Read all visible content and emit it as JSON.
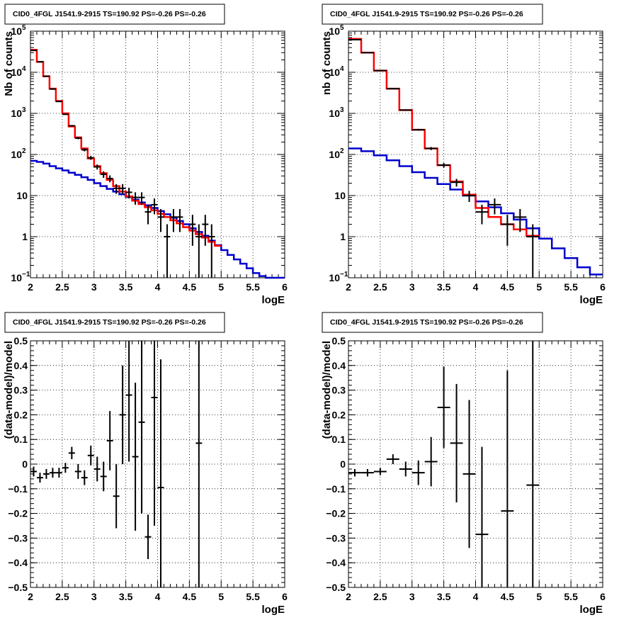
{
  "colors": {
    "data": "#000000",
    "model_total": "#ff0000",
    "model_component": "#0000cc",
    "grid": "#000000"
  },
  "chart_data": [
    {
      "type": "step-histogram",
      "title": "CID0_4FGL J1541.9-2915 TS=190.92 PS=-0.26 PS=-0.26",
      "xlabel": "logE",
      "ylabel": "Nb of counts",
      "xlim": [
        2,
        6
      ],
      "ylim": [
        0.1,
        100000
      ],
      "yscale": "log",
      "grid": true,
      "x_ticks": [
        "2",
        "2.5",
        "3",
        "3.5",
        "4",
        "4.5",
        "5",
        "5.5",
        "6"
      ],
      "y_ticks": [
        {
          "value": 0.1,
          "label": "10",
          "exp": "−1"
        },
        {
          "value": 1,
          "label": "1"
        },
        {
          "value": 10,
          "label": "10"
        },
        {
          "value": 100,
          "label": "10",
          "exp": "2"
        },
        {
          "value": 1000,
          "label": "10",
          "exp": "3"
        },
        {
          "value": 10000,
          "label": "10",
          "exp": "4"
        },
        {
          "value": 100000,
          "label": "10",
          "exp": "5"
        }
      ],
      "bin_edges": [
        2.0,
        2.1,
        2.2,
        2.3,
        2.4,
        2.5,
        2.6,
        2.7,
        2.8,
        2.9,
        3.0,
        3.1,
        3.2,
        3.3,
        3.4,
        3.5,
        3.6,
        3.7,
        3.8,
        3.9,
        4.0,
        4.1,
        4.2,
        4.3,
        4.4,
        4.5,
        4.6,
        4.7,
        4.8,
        4.9,
        5.0,
        5.1,
        5.2,
        5.3,
        5.4,
        5.5,
        5.6,
        5.7,
        5.8,
        5.9,
        6.0
      ],
      "series": [
        {
          "role": "component",
          "values": [
            70,
            66,
            60,
            52,
            46,
            41,
            36,
            32,
            28,
            24,
            20,
            17,
            14.5,
            12.5,
            10.8,
            9.2,
            7.9,
            6.8,
            5.8,
            5,
            4.2,
            3.5,
            2.9,
            2.4,
            2,
            1.6,
            1.3,
            1.05,
            0.8,
            0.62,
            0.47,
            0.36,
            0.28,
            0.22,
            0.17,
            0.13,
            0.11,
            0.1,
            0.1,
            0.1
          ]
        },
        {
          "role": "total",
          "values": [
            35000,
            18000,
            8000,
            4000,
            2000,
            1000,
            480,
            260,
            140,
            80,
            52,
            35,
            24,
            17,
            12.5,
            9.5,
            7.5,
            6.2,
            5.2,
            4.4,
            3.6,
            3,
            2.5,
            2.1,
            1.7,
            1.4,
            1.15,
            0.95,
            0.75,
            0.6
          ]
        }
      ],
      "points": [
        {
          "x": 2.05,
          "y": 34000,
          "lo": 33500,
          "hi": 34500
        },
        {
          "x": 2.15,
          "y": 18000,
          "lo": 17700,
          "hi": 18300
        },
        {
          "x": 2.25,
          "y": 8000,
          "lo": 7800,
          "hi": 8200
        },
        {
          "x": 2.35,
          "y": 3900,
          "lo": 3800,
          "hi": 4000
        },
        {
          "x": 2.45,
          "y": 1950,
          "lo": 1900,
          "hi": 2000
        },
        {
          "x": 2.55,
          "y": 950,
          "lo": 920,
          "hi": 980
        },
        {
          "x": 2.65,
          "y": 500,
          "lo": 480,
          "hi": 520
        },
        {
          "x": 2.75,
          "y": 250,
          "lo": 235,
          "hi": 265
        },
        {
          "x": 2.85,
          "y": 130,
          "lo": 119,
          "hi": 141
        },
        {
          "x": 2.95,
          "y": 83,
          "lo": 74,
          "hi": 92
        },
        {
          "x": 3.05,
          "y": 50,
          "lo": 43,
          "hi": 57
        },
        {
          "x": 3.15,
          "y": 33,
          "lo": 27,
          "hi": 39
        },
        {
          "x": 3.25,
          "y": 26,
          "lo": 21,
          "hi": 31
        },
        {
          "x": 3.35,
          "y": 15,
          "lo": 11,
          "hi": 19
        },
        {
          "x": 3.45,
          "y": 15,
          "lo": 11,
          "hi": 19
        },
        {
          "x": 3.55,
          "y": 12,
          "lo": 8.5,
          "hi": 15.5
        },
        {
          "x": 3.65,
          "y": 9,
          "lo": 6,
          "hi": 12
        },
        {
          "x": 3.75,
          "y": 9,
          "lo": 6,
          "hi": 12
        },
        {
          "x": 3.85,
          "y": 4,
          "lo": 2,
          "hi": 6
        },
        {
          "x": 3.95,
          "y": 6,
          "lo": 3.5,
          "hi": 8.5
        },
        {
          "x": 4.05,
          "y": 3,
          "lo": 1.3,
          "hi": 4.7
        },
        {
          "x": 4.15,
          "y": 1,
          "lo": 0.1,
          "hi": 2
        },
        {
          "x": 4.25,
          "y": 3,
          "lo": 1.3,
          "hi": 4.7
        },
        {
          "x": 4.35,
          "y": 3,
          "lo": 1.3,
          "hi": 4.7
        },
        {
          "x": 4.55,
          "y": 2,
          "lo": 0.6,
          "hi": 3.4
        },
        {
          "x": 4.65,
          "y": 1,
          "lo": 0.1,
          "hi": 2
        },
        {
          "x": 4.75,
          "y": 2,
          "lo": 0.6,
          "hi": 3.4
        },
        {
          "x": 4.85,
          "y": 1,
          "lo": 0.1,
          "hi": 2
        }
      ]
    },
    {
      "type": "step-histogram",
      "title": "CID0_4FGL J1541.9-2915 TS=190.92 PS=-0.26 PS=-0.26",
      "xlabel": "logE",
      "ylabel": "nb of counts",
      "xlim": [
        2,
        6
      ],
      "ylim": [
        0.1,
        100000
      ],
      "yscale": "log",
      "grid": true,
      "x_ticks": [
        "2",
        "2.5",
        "3",
        "3.5",
        "4",
        "4.5",
        "5",
        "5.5",
        "6"
      ],
      "y_ticks": [
        {
          "value": 0.1,
          "label": "10",
          "exp": "−1"
        },
        {
          "value": 1,
          "label": "1"
        },
        {
          "value": 10,
          "label": "10"
        },
        {
          "value": 100,
          "label": "10",
          "exp": "2"
        },
        {
          "value": 1000,
          "label": "10",
          "exp": "3"
        },
        {
          "value": 10000,
          "label": "10",
          "exp": "4"
        },
        {
          "value": 100000,
          "label": "10",
          "exp": "5"
        }
      ],
      "bin_edges": [
        2.0,
        2.2,
        2.4,
        2.6,
        2.8,
        3.0,
        3.2,
        3.4,
        3.6,
        3.8,
        4.0,
        4.2,
        4.4,
        4.6,
        4.8,
        5.0,
        5.2,
        5.4,
        5.6,
        5.8,
        6.0
      ],
      "series": [
        {
          "role": "component",
          "values": [
            140,
            120,
            95,
            72,
            52,
            37,
            27,
            19,
            14,
            10,
            7.2,
            5.2,
            3.7,
            2.6,
            1.6,
            0.9,
            0.52,
            0.3,
            0.18,
            0.12
          ]
        },
        {
          "role": "total",
          "values": [
            65000,
            30000,
            11000,
            4000,
            1200,
            400,
            140,
            55,
            22,
            10.5,
            5,
            3,
            2,
            1.5,
            1.05
          ]
        }
      ],
      "points": [
        {
          "x": 2.1,
          "y": 62000,
          "lo": 61700,
          "hi": 62300
        },
        {
          "x": 2.3,
          "y": 30000,
          "lo": 29700,
          "hi": 30300
        },
        {
          "x": 2.5,
          "y": 11000,
          "lo": 10800,
          "hi": 11200
        },
        {
          "x": 2.7,
          "y": 4000,
          "lo": 3900,
          "hi": 4100
        },
        {
          "x": 2.9,
          "y": 1200,
          "lo": 1150,
          "hi": 1250
        },
        {
          "x": 3.1,
          "y": 400,
          "lo": 380,
          "hi": 420
        },
        {
          "x": 3.3,
          "y": 140,
          "lo": 128,
          "hi": 152
        },
        {
          "x": 3.5,
          "y": 55,
          "lo": 48,
          "hi": 62
        },
        {
          "x": 3.7,
          "y": 21,
          "lo": 16.5,
          "hi": 25.5
        },
        {
          "x": 3.9,
          "y": 10,
          "lo": 7,
          "hi": 13
        },
        {
          "x": 4.1,
          "y": 4,
          "lo": 2,
          "hi": 6
        },
        {
          "x": 4.3,
          "y": 6,
          "lo": 3.5,
          "hi": 8.5
        },
        {
          "x": 4.5,
          "y": 2,
          "lo": 0.6,
          "hi": 3.4
        },
        {
          "x": 4.7,
          "y": 3,
          "lo": 1.3,
          "hi": 4.7
        },
        {
          "x": 4.9,
          "y": 1,
          "lo": 0.1,
          "hi": 2
        }
      ]
    },
    {
      "type": "errorbar",
      "title": "CID0_4FGL J1541.9-2915 TS=190.92 PS=-0.26 PS=-0.26",
      "xlabel": "logE",
      "ylabel": "(data-model)/model",
      "xlim": [
        2,
        6
      ],
      "ylim": [
        -0.5,
        0.5
      ],
      "yscale": "linear",
      "grid": true,
      "x_ticks": [
        "2",
        "2.5",
        "3",
        "3.5",
        "4",
        "4.5",
        "5",
        "5.5",
        "6"
      ],
      "y_ticks": [
        {
          "value": -0.5,
          "label": "−0.5"
        },
        {
          "value": -0.4,
          "label": "−0.4"
        },
        {
          "value": -0.3,
          "label": "−0.3"
        },
        {
          "value": -0.2,
          "label": "−0.2"
        },
        {
          "value": -0.1,
          "label": "−0.1"
        },
        {
          "value": 0,
          "label": "0"
        },
        {
          "value": 0.1,
          "label": "0.1"
        },
        {
          "value": 0.2,
          "label": "0.2"
        },
        {
          "value": 0.3,
          "label": "0.3"
        },
        {
          "value": 0.4,
          "label": "0.4"
        },
        {
          "value": 0.5,
          "label": "0.5"
        }
      ],
      "half_bin": 0.05,
      "points": [
        {
          "x": 2.05,
          "y": -0.03,
          "err": 0.02
        },
        {
          "x": 2.15,
          "y": -0.055,
          "err": 0.02
        },
        {
          "x": 2.25,
          "y": -0.04,
          "err": 0.02
        },
        {
          "x": 2.35,
          "y": -0.035,
          "err": 0.02
        },
        {
          "x": 2.45,
          "y": -0.035,
          "err": 0.02
        },
        {
          "x": 2.55,
          "y": -0.015,
          "err": 0.02
        },
        {
          "x": 2.65,
          "y": 0.045,
          "err": 0.025
        },
        {
          "x": 2.75,
          "y": -0.03,
          "err": 0.03
        },
        {
          "x": 2.85,
          "y": -0.055,
          "err": 0.03
        },
        {
          "x": 2.95,
          "y": 0.035,
          "err": 0.04
        },
        {
          "x": 3.05,
          "y": -0.02,
          "err": 0.05
        },
        {
          "x": 3.15,
          "y": -0.05,
          "err": 0.06
        },
        {
          "x": 3.25,
          "y": 0.095,
          "err": 0.12
        },
        {
          "x": 3.35,
          "y": -0.13,
          "err": 0.13
        },
        {
          "x": 3.45,
          "y": 0.2,
          "err": 0.2
        },
        {
          "x": 3.55,
          "y": 0.28,
          "err": 0.27
        },
        {
          "x": 3.65,
          "y": 0.03,
          "err": 0.3
        },
        {
          "x": 3.75,
          "y": 0.17,
          "err": 0.37
        },
        {
          "x": 3.85,
          "y": -0.295,
          "err": 0.09
        },
        {
          "x": 3.95,
          "y": 0.27,
          "err": 0.52
        },
        {
          "x": 4.05,
          "y": -0.095,
          "err": 0.52
        },
        {
          "x": 4.65,
          "y": 0.085,
          "err": 0.6
        }
      ]
    },
    {
      "type": "errorbar",
      "title": "CID0_4FGL J1541.9-2915 TS=190.92 PS=-0.26 PS=-0.26",
      "xlabel": "logE",
      "ylabel": "(data-model)/model",
      "xlim": [
        2,
        6
      ],
      "ylim": [
        -0.5,
        0.5
      ],
      "yscale": "linear",
      "grid": true,
      "x_ticks": [
        "2",
        "2.5",
        "3",
        "3.5",
        "4",
        "4.5",
        "5",
        "5.5",
        "6"
      ],
      "y_ticks": [
        {
          "value": -0.5,
          "label": "−0.5"
        },
        {
          "value": -0.4,
          "label": "−0.4"
        },
        {
          "value": -0.3,
          "label": "−0.3"
        },
        {
          "value": -0.2,
          "label": "−0.2"
        },
        {
          "value": -0.1,
          "label": "−0.1"
        },
        {
          "value": 0,
          "label": "0"
        },
        {
          "value": 0.1,
          "label": "0.1"
        },
        {
          "value": 0.2,
          "label": "0.2"
        },
        {
          "value": 0.3,
          "label": "0.3"
        },
        {
          "value": 0.4,
          "label": "0.4"
        },
        {
          "value": 0.5,
          "label": "0.5"
        }
      ],
      "half_bin": 0.1,
      "points": [
        {
          "x": 2.1,
          "y": -0.035,
          "err": 0.015
        },
        {
          "x": 2.3,
          "y": -0.035,
          "err": 0.015
        },
        {
          "x": 2.5,
          "y": -0.03,
          "err": 0.015
        },
        {
          "x": 2.7,
          "y": 0.02,
          "err": 0.02
        },
        {
          "x": 2.9,
          "y": -0.02,
          "err": 0.03
        },
        {
          "x": 3.1,
          "y": -0.035,
          "err": 0.05
        },
        {
          "x": 3.3,
          "y": 0.01,
          "err": 0.1
        },
        {
          "x": 3.5,
          "y": 0.23,
          "err": 0.165
        },
        {
          "x": 3.7,
          "y": 0.085,
          "err": 0.24
        },
        {
          "x": 3.9,
          "y": -0.04,
          "err": 0.3
        },
        {
          "x": 4.1,
          "y": -0.285,
          "err": 0.355
        },
        {
          "x": 4.5,
          "y": -0.19,
          "err": 0.57
        },
        {
          "x": 4.9,
          "y": -0.085,
          "err": 0.6
        }
      ]
    }
  ]
}
